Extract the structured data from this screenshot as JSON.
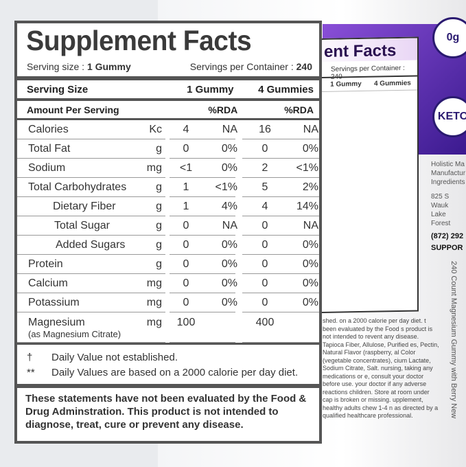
{
  "label": {
    "title": "Supplement Facts",
    "serving_size": "Serving size :",
    "serving_size_value": "1 Gummy",
    "servings_per_container": "Servings per Container :",
    "servings_per_container_value": "240",
    "header": {
      "label": "Serving Size",
      "col1": "1 Gummy",
      "col2": "4 Gummies"
    },
    "amount": {
      "label": "Amount Per Serving",
      "col1": "%RDA",
      "col2": "%RDA"
    },
    "rows": [
      {
        "name": "Calories",
        "unit": "Kc",
        "v1": "4",
        "p1": "NA",
        "v2": "16",
        "p2": "NA"
      },
      {
        "name": "Total Fat",
        "unit": "g",
        "v1": "0",
        "p1": "0%",
        "v2": "0",
        "p2": "0%"
      },
      {
        "name": "Sodium",
        "unit": "mg",
        "v1": "<1",
        "p1": "0%",
        "v2": "2",
        "p2": "<1%"
      },
      {
        "name": "Total Carbohydrates",
        "unit": "g",
        "v1": "1",
        "p1": "<1%",
        "v2": "5",
        "p2": "2%"
      },
      {
        "name": "Dietary Fiber",
        "unit": "g",
        "v1": "1",
        "p1": "4%",
        "v2": "4",
        "p2": "14%"
      },
      {
        "name": "Total Sugar",
        "unit": "g",
        "v1": "0",
        "p1": "NA",
        "v2": "0",
        "p2": "NA"
      },
      {
        "name": "Added Sugars",
        "unit": "g",
        "v1": "0",
        "p1": "0%",
        "v2": "0",
        "p2": "0%"
      },
      {
        "name": "Protein",
        "unit": "g",
        "v1": "0",
        "p1": "0%",
        "v2": "0",
        "p2": "0%"
      },
      {
        "name": "Calcium",
        "unit": "mg",
        "v1": "0",
        "p1": "0%",
        "v2": "0",
        "p2": "0%"
      },
      {
        "name": "Potassium",
        "unit": "mg",
        "v1": "0",
        "p1": "0%",
        "v2": "0",
        "p2": "0%"
      },
      {
        "name": "Magnesium",
        "sub": "(as Magnesium Citrate)",
        "unit": "mg",
        "v1": "100",
        "p1": "",
        "v2": "400",
        "p2": ""
      }
    ],
    "notes": [
      {
        "symbol": "†",
        "text": "Daily Value not established."
      },
      {
        "symbol": "**",
        "text": "Daily Values are based on a 2000 calorie per day diet."
      }
    ],
    "statement": "These statements have not been evaluated by the Food & Drug Adminstration. This product is not intended to diagnose, treat, cure or prevent any disease."
  },
  "background": {
    "title": "ent Facts",
    "servings": "Servings per Container : 240",
    "cols": [
      "1 Gummy",
      "4 Gummies"
    ],
    "badge1": "0g",
    "badge2": "KETO",
    "address": [
      "Holistic Ma",
      "Manufactur",
      "Ingredients",
      "825 S Wauk",
      "Lake Forest"
    ],
    "phone": "(872) 292",
    "support": "SUPPOR",
    "side_text": "shed. on a 2000 calorie per day diet. t been evaluated by the Food s product is not intended to revent any disease. Tapioca Fiber, Allulose, Purified es, Pectin, Natural Flavor (raspberry, al Color (vegetable concentrates), cium Lactate, Sodium Citrate, Salt. nursing, taking any medications or e, consult your doctor before use. your doctor if any adverse reactions children. Store at room under cap is broken or missing. upplement, healthy adults chew 1-4 n as directed by a qualified healthcare professional.",
    "vertical": "240 Count Magnesium Gummy with Berry New"
  }
}
